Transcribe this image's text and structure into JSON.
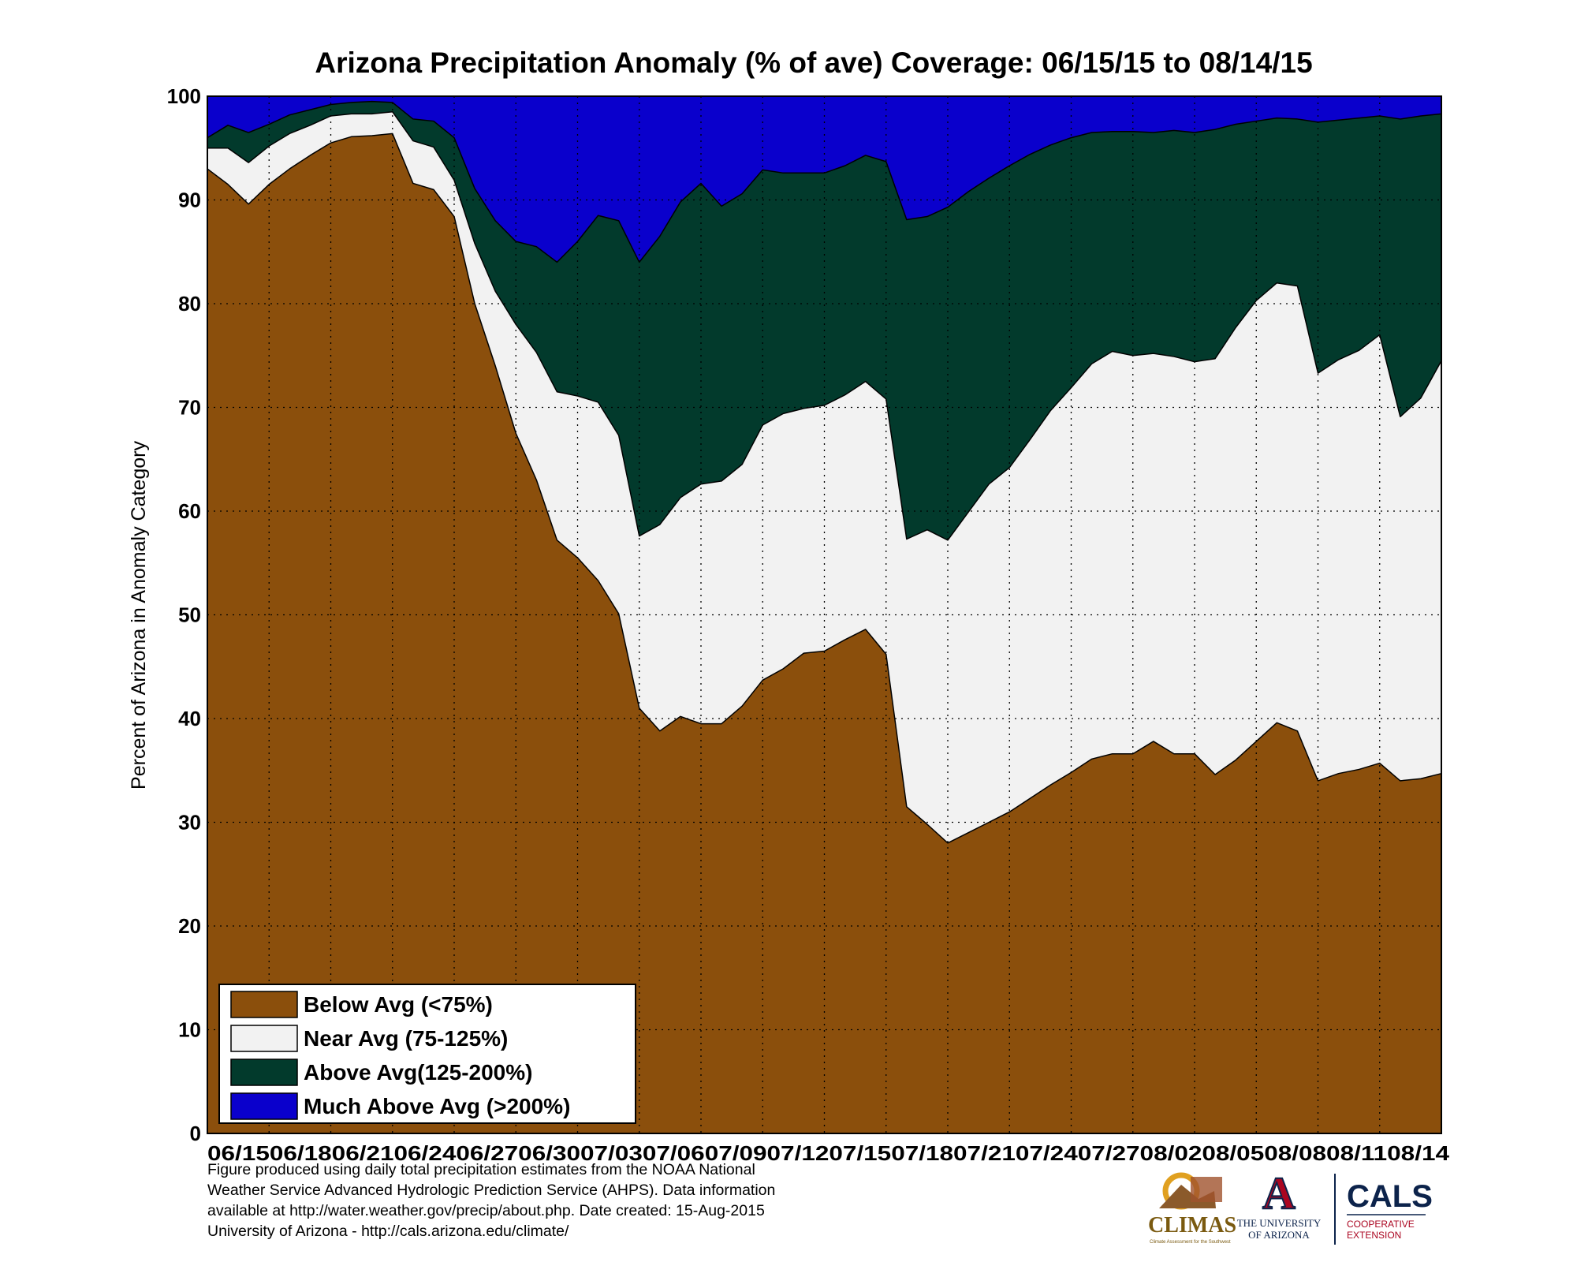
{
  "chart_data": {
    "type": "area",
    "stacked": true,
    "title": "Arizona Precipitation Anomaly (% of ave) Coverage: 06/15/15 to 08/14/15",
    "ylabel": "Percent of Arizona in Anomaly Category",
    "ylim": [
      0,
      100
    ],
    "yticks": [
      "0",
      "10",
      "20",
      "30",
      "40",
      "50",
      "60",
      "70",
      "80",
      "90",
      "100"
    ],
    "xtick_text": "06/1506/1806/2106/2406/2706/3007/0307/0607/0907/1207/1507/1807/2107/2407/2708/0208/0508/0808/1108/14",
    "grid": true,
    "legend_position": "bottom-left",
    "x": [
      "06/15",
      "06/16",
      "06/17",
      "06/18",
      "06/19",
      "06/20",
      "06/21",
      "06/22",
      "06/23",
      "06/24",
      "06/25",
      "06/26",
      "06/27",
      "06/28",
      "06/29",
      "06/30",
      "07/01",
      "07/02",
      "07/03",
      "07/04",
      "07/05",
      "07/06",
      "07/07",
      "07/08",
      "07/09",
      "07/10",
      "07/11",
      "07/12",
      "07/13",
      "07/14",
      "07/15",
      "07/16",
      "07/17",
      "07/18",
      "07/19",
      "07/20",
      "07/21",
      "07/22",
      "07/23",
      "07/24",
      "07/25",
      "07/26",
      "07/27",
      "07/28",
      "07/29",
      "07/30",
      "07/31",
      "08/01",
      "08/02",
      "08/03",
      "08/04",
      "08/05",
      "08/06",
      "08/07",
      "08/08",
      "08/09",
      "08/10",
      "08/11",
      "08/12",
      "08/13",
      "08/14"
    ],
    "series": [
      {
        "name": "Below Avg (<75%)",
        "color": "#8B4F0C",
        "values": [
          93.0,
          91.5,
          89.6,
          91.5,
          93.0,
          94.3,
          95.5,
          96.1,
          96.2,
          96.4,
          91.6,
          91.0,
          88.4,
          80.0,
          74.0,
          67.5,
          63.0,
          57.2,
          55.5,
          53.3,
          50.1,
          41.0,
          38.8,
          40.2,
          39.5,
          39.5,
          41.2,
          43.7,
          44.8,
          46.3,
          46.5,
          47.6,
          48.6,
          46.2,
          31.5,
          29.8,
          28.0,
          29.0,
          30.0,
          31.0,
          32.3,
          33.6,
          34.8,
          36.1,
          36.6,
          36.6,
          37.8,
          36.6,
          36.6,
          34.6,
          36.0,
          37.8,
          39.6,
          38.8,
          34.0,
          34.7,
          35.1,
          35.7,
          34.0,
          34.2,
          34.7
        ]
      },
      {
        "name": "Near Avg (75-125%)",
        "color": "#F2F2F2",
        "values": [
          95.0,
          95.0,
          93.6,
          95.2,
          96.4,
          97.2,
          98.1,
          98.3,
          98.3,
          98.5,
          95.7,
          95.1,
          91.9,
          85.8,
          81.2,
          78.0,
          75.3,
          71.5,
          71.1,
          70.5,
          67.3,
          57.6,
          58.7,
          61.3,
          62.6,
          62.9,
          64.5,
          68.3,
          69.4,
          69.9,
          70.2,
          71.2,
          72.5,
          70.8,
          57.3,
          58.2,
          57.2,
          59.9,
          62.6,
          64.2,
          66.9,
          69.7,
          71.9,
          74.2,
          75.4,
          75.0,
          75.2,
          74.9,
          74.4,
          74.7,
          77.7,
          80.3,
          82.0,
          81.7,
          73.3,
          74.6,
          75.5,
          77.0,
          69.1,
          70.9,
          74.5
        ]
      },
      {
        "name": "Above Avg(125-200%)",
        "color": "#023A2C",
        "values": [
          96.0,
          97.2,
          96.5,
          97.3,
          98.2,
          98.7,
          99.2,
          99.4,
          99.5,
          99.4,
          97.8,
          97.6,
          96.0,
          91.1,
          88.0,
          86.0,
          85.5,
          84.0,
          86.0,
          88.5,
          88.0,
          84.0,
          86.5,
          89.8,
          91.6,
          89.4,
          90.6,
          92.9,
          92.6,
          92.6,
          92.6,
          93.3,
          94.3,
          93.7,
          88.1,
          88.4,
          89.3,
          90.8,
          92.1,
          93.3,
          94.4,
          95.3,
          96.0,
          96.5,
          96.6,
          96.6,
          96.5,
          96.7,
          96.5,
          96.8,
          97.3,
          97.6,
          97.9,
          97.8,
          97.5,
          97.7,
          97.9,
          98.1,
          97.8,
          98.1,
          98.3
        ]
      },
      {
        "name": "Much Above Avg (>200%)",
        "color": "#0A00CC",
        "values": [
          100,
          100,
          100,
          100,
          100,
          100,
          100,
          100,
          100,
          100,
          100,
          100,
          100,
          100,
          100,
          100,
          100,
          100,
          100,
          100,
          100,
          100,
          100,
          100,
          100,
          100,
          100,
          100,
          100,
          100,
          100,
          100,
          100,
          100,
          100,
          100,
          100,
          100,
          100,
          100,
          100,
          100,
          100,
          100,
          100,
          100,
          100,
          100,
          100,
          100,
          100,
          100,
          100,
          100,
          100,
          100,
          100,
          100,
          100,
          100,
          100
        ]
      }
    ],
    "values_are_cumulative": true
  },
  "footer": {
    "line1": "Figure produced using daily total precipitation estimates from the NOAA National",
    "line2": "Weather Service Advanced Hydrologic Prediction Service (AHPS). Data information",
    "line3": "available at http://water.weather.gov/precip/about.php. Date created: 15-Aug-2015",
    "line4": "University of Arizona - http://cals.arizona.edu/climate/"
  },
  "logos": {
    "climas": "CLIMAS",
    "climas_tagline": "Climate Assessment for the Southwest",
    "ua_letter": "A",
    "ua_line1": "THE UNIVERSITY",
    "ua_line2": "OF ARIZONA",
    "cals": "CALS",
    "cals_line1": "COOPERATIVE",
    "cals_line2": "EXTENSION"
  }
}
